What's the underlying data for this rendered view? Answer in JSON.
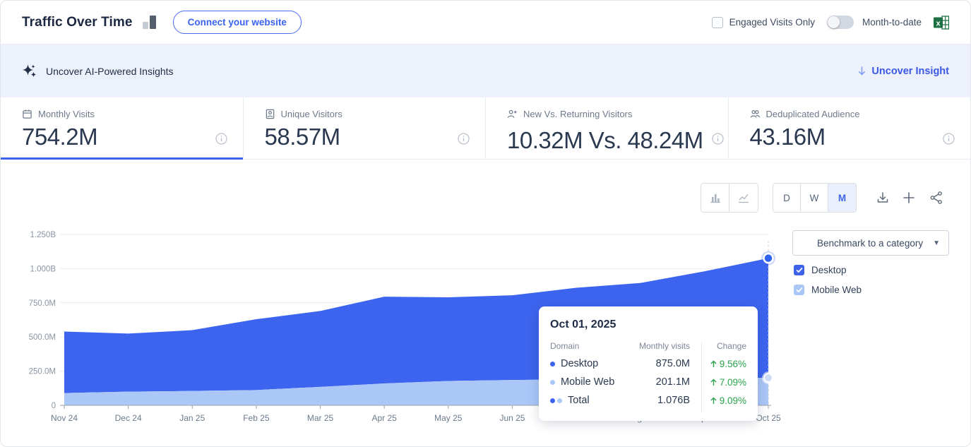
{
  "header": {
    "title": "Traffic Over Time",
    "connect_button": "Connect your website",
    "engaged_visits_label": "Engaged Visits Only",
    "month_to_date_label": "Month-to-date"
  },
  "ai_bar": {
    "label": "Uncover AI-Powered Insights",
    "link": "Uncover Insight"
  },
  "metrics": [
    {
      "label": "Monthly Visits",
      "value": "754.2M"
    },
    {
      "label": "Unique Visitors",
      "value": "58.57M"
    },
    {
      "label": "New Vs. Returning Visitors",
      "value": "10.32M Vs. 48.24M"
    },
    {
      "label": "Deduplicated Audience",
      "value": "43.16M"
    }
  ],
  "toolbar": {
    "granularity": {
      "d": "D",
      "w": "W",
      "m": "M"
    },
    "selected": "M"
  },
  "benchmark": {
    "placeholder": "Benchmark to a category"
  },
  "legend": [
    {
      "label": "Desktop",
      "color": "#3e63e9",
      "checked": true
    },
    {
      "label": "Mobile Web",
      "color": "#a9c6f7",
      "checked": true
    }
  ],
  "chart_data": {
    "type": "area",
    "stacked": true,
    "categories": [
      "Nov 24",
      "Dec 24",
      "Jan 25",
      "Feb 25",
      "Mar 25",
      "Apr 25",
      "May 25",
      "Jun 25",
      "Jul 25",
      "Aug 25",
      "Sep 25",
      "Oct 25"
    ],
    "series": [
      {
        "name": "Desktop",
        "color": "#3d64ef",
        "values_millions": [
          450,
          425,
          445,
          518,
          555,
          635,
          612,
          620,
          670,
          700,
          780,
          875
        ]
      },
      {
        "name": "Mobile Web",
        "color": "#abc7f8",
        "values_millions": [
          90,
          100,
          105,
          112,
          135,
          160,
          178,
          185,
          190,
          195,
          200,
          201
        ]
      }
    ],
    "ylim_millions": [
      0,
      1250
    ],
    "y_ticks": [
      "0",
      "250.0M",
      "500.0M",
      "750.0M",
      "1.000B",
      "1.250B"
    ],
    "title": "Traffic Over Time",
    "legend_position": "right",
    "grid": true
  },
  "tooltip": {
    "date": "Oct 01, 2025",
    "columns": {
      "domain": "Domain",
      "visits": "Monthly visits",
      "change": "Change"
    },
    "rows": [
      {
        "name": "Desktop",
        "visits": "875.0M",
        "change": "9.56%"
      },
      {
        "name": "Mobile Web",
        "visits": "201.1M",
        "change": "7.09%"
      },
      {
        "name": "Total",
        "visits": "1.076B",
        "change": "9.09%"
      }
    ]
  }
}
